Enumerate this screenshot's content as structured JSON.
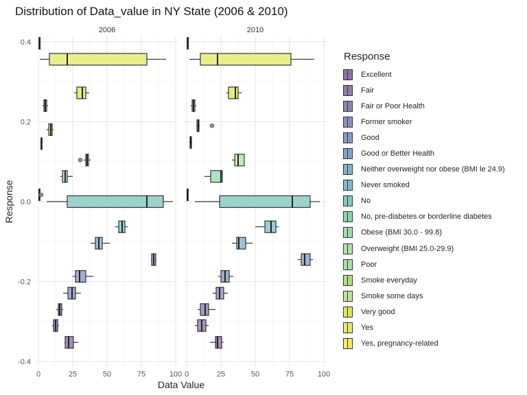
{
  "chart_data": {
    "type": "box",
    "title": "Distribution of Data_value in NY State (2006 & 2010)",
    "xlabel": "Data Value",
    "ylabel": "Response",
    "xlim": [
      -2,
      102
    ],
    "ylim": [
      -0.4,
      0.4
    ],
    "xticks": [
      "0",
      "25",
      "50",
      "75",
      "100"
    ],
    "yticks": [
      "-0.4",
      "-0.2",
      "0.0",
      "0.2",
      "0.4"
    ],
    "legend_title": "Response",
    "legend_position": "right",
    "grid": true,
    "facets": [
      {
        "label": "2006",
        "boxes": [
          {
            "y": 0.356,
            "whisker": [
              1,
              93
            ],
            "q1": 8,
            "median": 21,
            "q3": 79,
            "color": "#e4ea70",
            "fill_opacity": 0.8
          },
          {
            "y": 0.272,
            "whisker": [
              26,
              37
            ],
            "q1": 28,
            "median": 32,
            "q3": 34.5,
            "color": "#dde85a",
            "fill_opacity": 0.8
          },
          {
            "y": 0.18,
            "whisker": [
              6,
              11
            ],
            "q1": 7.5,
            "median": 9,
            "q3": 10,
            "color": "#c3e49a",
            "fill_opacity": 0.8
          },
          {
            "y": 0.104,
            "whisker": [
              33,
              38
            ],
            "q1": 34.5,
            "median": 35.5,
            "q3": 36.5,
            "color": "#b3e2a5",
            "fill_opacity": 0.8,
            "outliers": [
              30.5
            ]
          },
          {
            "y": 0.063,
            "whisker": [
              16,
              25
            ],
            "q1": 17.5,
            "median": 19.5,
            "q3": 21,
            "color": "#9fdcb0",
            "fill_opacity": 0.8
          },
          {
            "y": 0.017,
            "whisker": [
              0.3,
              0.7
            ],
            "q1": 0.4,
            "median": 0.5,
            "q3": 0.6,
            "color": "#8cd6b0",
            "fill_opacity": 0.8,
            "outliers": [
              2
            ]
          },
          {
            "y": 0.0,
            "whisker": [
              6,
              98
            ],
            "q1": 21,
            "median": 79,
            "q3": 91,
            "color": "#86c7c0",
            "fill_opacity": 0.8
          },
          {
            "y": -0.063,
            "whisker": [
              56,
              65
            ],
            "q1": 58.5,
            "median": 61,
            "q3": 63,
            "color": "#84bfc5",
            "fill_opacity": 0.8
          },
          {
            "y": -0.104,
            "whisker": [
              38,
              52
            ],
            "q1": 41.5,
            "median": 44,
            "q3": 46.5,
            "color": "#85b2c8",
            "fill_opacity": 0.8
          },
          {
            "y": -0.145,
            "whisker": [
              82,
              86
            ],
            "q1": 82.5,
            "median": 84,
            "q3": 85.5,
            "color": "#879fc8",
            "fill_opacity": 0.8
          },
          {
            "y": -0.187,
            "whisker": [
              25,
              40
            ],
            "q1": 27,
            "median": 30,
            "q3": 34.5,
            "color": "#8999c5",
            "fill_opacity": 0.8
          },
          {
            "y": -0.229,
            "whisker": [
              18,
              31
            ],
            "q1": 21.5,
            "median": 24.5,
            "q3": 27,
            "color": "#8e8fc0",
            "fill_opacity": 0.8
          },
          {
            "y": -0.27,
            "whisker": [
              13,
              18
            ],
            "q1": 14.5,
            "median": 15.5,
            "q3": 17,
            "color": "#9085b7",
            "fill_opacity": 0.8
          },
          {
            "y": -0.31,
            "whisker": [
              10,
              15
            ],
            "q1": 11,
            "median": 12.5,
            "q3": 14,
            "color": "#8f7dac",
            "fill_opacity": 0.8
          },
          {
            "y": -0.352,
            "whisker": [
              19,
              29
            ],
            "q1": 19.5,
            "median": 22,
            "q3": 25.5,
            "color": "#8d73a6",
            "fill_opacity": 0.8
          },
          {
            "y": 0.24,
            "whisker": [
              3,
              7
            ],
            "q1": 4,
            "median": 5,
            "q3": 6,
            "color": "#b0dd82",
            "fill_opacity": 0.8
          },
          {
            "y": 0.145,
            "whisker": [
              1.8,
              2.4
            ],
            "q1": 1.9,
            "median": 2.1,
            "q3": 2.3,
            "color": "#a8e0a8",
            "fill_opacity": 0.8
          },
          {
            "y": 0.396,
            "whisker": [
              0.4,
              0.8
            ],
            "q1": 0.5,
            "median": 0.6,
            "q3": 0.7,
            "color": "#f3ea66",
            "fill_opacity": 0.8
          }
        ]
      },
      {
        "label": "2010",
        "boxes": [
          {
            "y": 0.356,
            "whisker": [
              2,
              93
            ],
            "q1": 10,
            "median": 22.5,
            "q3": 76,
            "color": "#e4ea70",
            "fill_opacity": 0.8
          },
          {
            "y": 0.272,
            "whisker": [
              29,
              40
            ],
            "q1": 30.5,
            "median": 35.5,
            "q3": 37.5,
            "color": "#dde85a",
            "fill_opacity": 0.8
          },
          {
            "y": 0.19,
            "whisker": [
              7,
              9.5
            ],
            "q1": 7.5,
            "median": 8.5,
            "q3": 9,
            "color": "#c3e49a",
            "fill_opacity": 0.8,
            "outliers": [
              18.5
            ]
          },
          {
            "y": 0.148,
            "whisker": [
              2,
              4
            ],
            "q1": 2.5,
            "median": 3,
            "q3": 3.5,
            "color": "#a8e0a8",
            "fill_opacity": 0.8
          },
          {
            "y": 0.104,
            "whisker": [
              33,
              42
            ],
            "q1": 35,
            "median": 37.5,
            "q3": 42,
            "color": "#b3e2a5",
            "fill_opacity": 0.8
          },
          {
            "y": 0.063,
            "whisker": [
              13,
              26
            ],
            "q1": 17.5,
            "median": 25,
            "q3": 26,
            "color": "#9fdcb0",
            "fill_opacity": 0.8
          },
          {
            "y": 0.017,
            "whisker": [
              0.3,
              0.7
            ],
            "q1": 0.4,
            "median": 0.5,
            "q3": 0.6,
            "color": "#8cd6b0",
            "fill_opacity": 0.8
          },
          {
            "y": 0.0,
            "whisker": [
              6,
              97
            ],
            "q1": 24,
            "median": 77,
            "q3": 90,
            "color": "#86c7c0",
            "fill_opacity": 0.8
          },
          {
            "y": -0.063,
            "whisker": [
              50,
              67
            ],
            "q1": 57,
            "median": 61.5,
            "q3": 65,
            "color": "#84bfc5",
            "fill_opacity": 0.8
          },
          {
            "y": -0.104,
            "whisker": [
              33,
              48
            ],
            "q1": 36.5,
            "median": 38,
            "q3": 43,
            "color": "#85b2c8",
            "fill_opacity": 0.8
          },
          {
            "y": -0.145,
            "whisker": [
              81,
              92
            ],
            "q1": 83.5,
            "median": 86,
            "q3": 90,
            "color": "#879fc8",
            "fill_opacity": 0.8
          },
          {
            "y": -0.187,
            "whisker": [
              23,
              34
            ],
            "q1": 25,
            "median": 28,
            "q3": 31,
            "color": "#8999c5",
            "fill_opacity": 0.8
          },
          {
            "y": -0.229,
            "whisker": [
              19,
              30
            ],
            "q1": 21.5,
            "median": 24,
            "q3": 27,
            "color": "#8e8fc0",
            "fill_opacity": 0.8
          },
          {
            "y": -0.27,
            "whisker": [
              8,
              21
            ],
            "q1": 10,
            "median": 13.5,
            "q3": 16,
            "color": "#9085b7",
            "fill_opacity": 0.8
          },
          {
            "y": -0.31,
            "whisker": [
              6,
              16
            ],
            "q1": 8,
            "median": 11,
            "q3": 14,
            "color": "#8f7dac",
            "fill_opacity": 0.8
          },
          {
            "y": -0.352,
            "whisker": [
              17,
              27
            ],
            "q1": 21,
            "median": 22.5,
            "q3": 25.5,
            "color": "#8d73a6",
            "fill_opacity": 0.8
          },
          {
            "y": 0.24,
            "whisker": [
              3,
              7
            ],
            "q1": 4,
            "median": 5,
            "q3": 6,
            "color": "#b0dd82",
            "fill_opacity": 0.8
          },
          {
            "y": 0.396,
            "whisker": [
              0.4,
              0.8
            ],
            "q1": 0.5,
            "median": 0.6,
            "q3": 0.7,
            "color": "#f3ea66",
            "fill_opacity": 0.8
          }
        ]
      }
    ],
    "legend": [
      {
        "label": "Excellent",
        "color": "#8d73a6"
      },
      {
        "label": "Fair",
        "color": "#8f7dac"
      },
      {
        "label": "Fair or Poor Health",
        "color": "#9085b7"
      },
      {
        "label": "Former smoker",
        "color": "#8e8fc0"
      },
      {
        "label": "Good",
        "color": "#8999c5"
      },
      {
        "label": "Good or Better Health",
        "color": "#879fc8"
      },
      {
        "label": "Neither overweight nor obese (BMI le 24.9)",
        "color": "#85b2c8"
      },
      {
        "label": "Never smoked",
        "color": "#84bfc5"
      },
      {
        "label": "No",
        "color": "#86c7c0"
      },
      {
        "label": "No, pre-diabetes or borderline diabetes",
        "color": "#8cd6b0"
      },
      {
        "label": "Obese (BMI 30.0 - 99.8)",
        "color": "#9fdcb0"
      },
      {
        "label": "Overweight (BMI 25.0-29.9)",
        "color": "#b3e2a5"
      },
      {
        "label": "Poor",
        "color": "#a8e0a8"
      },
      {
        "label": "Smoke everyday",
        "color": "#b0dd82"
      },
      {
        "label": "Smoke some days",
        "color": "#c3e49a"
      },
      {
        "label": "Very good",
        "color": "#dde85a"
      },
      {
        "label": "Yes",
        "color": "#e4ea70"
      },
      {
        "label": "Yes, pregnancy-related",
        "color": "#f3ea66"
      }
    ]
  }
}
